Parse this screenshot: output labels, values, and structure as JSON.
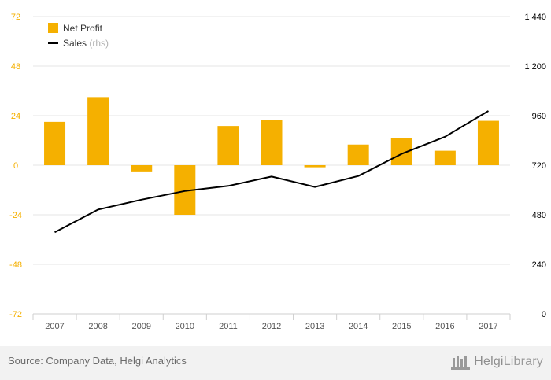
{
  "chart_data": {
    "type": "bar+line",
    "categories": [
      "2007",
      "2008",
      "2009",
      "2010",
      "2011",
      "2012",
      "2013",
      "2014",
      "2015",
      "2016",
      "2017"
    ],
    "series": [
      {
        "name": "Net Profit",
        "kind": "bar",
        "axis": "left",
        "color": "#f5b000",
        "values": [
          21,
          33,
          -3,
          -24,
          19,
          22,
          -1,
          10,
          13,
          7,
          21.5
        ]
      },
      {
        "name": "Sales",
        "suffix": "(rhs)",
        "kind": "line",
        "axis": "right",
        "color": "#000000",
        "values": [
          395,
          505,
          553,
          595,
          620,
          665,
          615,
          668,
          775,
          858,
          983
        ]
      }
    ],
    "y_left": {
      "min": -72,
      "max": 72,
      "ticks": [
        "72",
        "48",
        "24",
        "0",
        "-24",
        "-48",
        "-72"
      ],
      "tick_values": [
        72,
        48,
        24,
        0,
        -24,
        -48,
        -72
      ],
      "color": "#f5b000"
    },
    "y_right": {
      "min": 0,
      "max": 1440,
      "ticks": [
        "1 440",
        "1 200",
        "960",
        "720",
        "480",
        "240",
        "0"
      ],
      "tick_values": [
        1440,
        1200,
        960,
        720,
        480,
        240,
        0
      ],
      "color": "#000000"
    },
    "grid": true,
    "legend_position": "top-left"
  },
  "legend": {
    "net_profit_label": "Net Profit",
    "sales_label": "Sales",
    "sales_suffix": "(rhs)"
  },
  "footer": {
    "source": "Source: Company Data, Helgi Analytics",
    "brand_main": "Helgi",
    "brand_sub": "Library"
  }
}
